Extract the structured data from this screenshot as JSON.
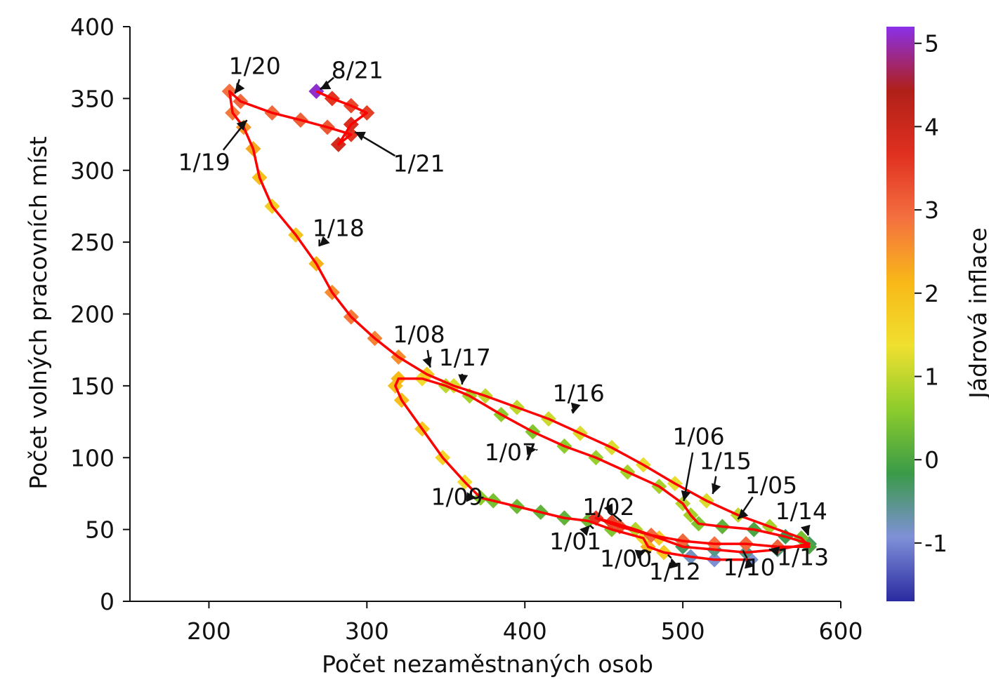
{
  "chart_data": {
    "type": "scatter",
    "variant": "connected-scatter-with-colorbar",
    "xlabel": "Počet nezaměstnaných osob",
    "ylabel": "Počet volných pracovních míst",
    "xlim": [
      150,
      600
    ],
    "ylim": [
      0,
      400
    ],
    "x_ticks": [
      200,
      300,
      400,
      500,
      600
    ],
    "y_ticks": [
      0,
      50,
      100,
      150,
      200,
      250,
      300,
      350,
      400
    ],
    "colorbar": {
      "label": "Jádrová inflace",
      "range": [
        -1.7,
        5.2
      ],
      "ticks": [
        -1,
        0,
        1,
        2,
        3,
        4,
        5
      ],
      "colors": [
        "#2a2aa0",
        "#7f90d8",
        "#3a9a48",
        "#8ccc2c",
        "#f0e030",
        "#f8b818",
        "#f47040",
        "#e03020",
        "#b02018",
        "#8a30e8"
      ]
    },
    "line_color": "#ff0000",
    "path": [
      {
        "x": 543,
        "y": 29,
        "c": -0.9
      },
      {
        "x": 520,
        "y": 29,
        "c": -0.9
      },
      {
        "x": 505,
        "y": 31,
        "c": -0.8
      },
      {
        "x": 488,
        "y": 34,
        "c": 1.8
      },
      {
        "x": 478,
        "y": 38,
        "c": 2.2
      },
      {
        "x": 475,
        "y": 44,
        "c": 1.5
      },
      {
        "x": 455,
        "y": 50,
        "c": 0.5
      },
      {
        "x": 440,
        "y": 56,
        "c": 0.3
      },
      {
        "x": 425,
        "y": 58,
        "c": 0.2
      },
      {
        "x": 410,
        "y": 62,
        "c": 0.2
      },
      {
        "x": 395,
        "y": 66,
        "c": 0.3
      },
      {
        "x": 380,
        "y": 70,
        "c": 0.4
      },
      {
        "x": 372,
        "y": 72,
        "c": 0.6
      },
      {
        "x": 362,
        "y": 83,
        "c": 1.4
      },
      {
        "x": 348,
        "y": 100,
        "c": 1.6
      },
      {
        "x": 335,
        "y": 120,
        "c": 1.8
      },
      {
        "x": 322,
        "y": 140,
        "c": 2.0
      },
      {
        "x": 318,
        "y": 150,
        "c": 2.0
      },
      {
        "x": 320,
        "y": 155,
        "c": 2.1
      },
      {
        "x": 335,
        "y": 155,
        "c": 1.4
      },
      {
        "x": 350,
        "y": 150,
        "c": 1.0
      },
      {
        "x": 365,
        "y": 143,
        "c": 0.8
      },
      {
        "x": 385,
        "y": 130,
        "c": 0.6
      },
      {
        "x": 405,
        "y": 118,
        "c": 0.5
      },
      {
        "x": 425,
        "y": 108,
        "c": 0.6
      },
      {
        "x": 445,
        "y": 100,
        "c": 0.7
      },
      {
        "x": 465,
        "y": 90,
        "c": 0.8
      },
      {
        "x": 485,
        "y": 80,
        "c": 0.8
      },
      {
        "x": 500,
        "y": 68,
        "c": 0.9
      },
      {
        "x": 505,
        "y": 60,
        "c": 0.8
      },
      {
        "x": 510,
        "y": 54,
        "c": 0.5
      },
      {
        "x": 525,
        "y": 52,
        "c": 0.2
      },
      {
        "x": 545,
        "y": 50,
        "c": 0.0
      },
      {
        "x": 565,
        "y": 45,
        "c": -0.2
      },
      {
        "x": 580,
        "y": 40,
        "c": -0.3
      },
      {
        "x": 560,
        "y": 36,
        "c": -0.4
      },
      {
        "x": 540,
        "y": 34,
        "c": -0.5
      },
      {
        "x": 520,
        "y": 36,
        "c": -0.5
      },
      {
        "x": 500,
        "y": 38,
        "c": -0.3
      },
      {
        "x": 485,
        "y": 44,
        "c": 1.8
      },
      {
        "x": 470,
        "y": 50,
        "c": 0.9
      },
      {
        "x": 455,
        "y": 55,
        "c": 3.4
      },
      {
        "x": 445,
        "y": 58,
        "c": 3.6
      },
      {
        "x": 460,
        "y": 52,
        "c": 3.3
      },
      {
        "x": 480,
        "y": 46,
        "c": 3.0
      },
      {
        "x": 500,
        "y": 42,
        "c": 3.0
      },
      {
        "x": 520,
        "y": 40,
        "c": 2.9
      },
      {
        "x": 540,
        "y": 40,
        "c": 3.0
      },
      {
        "x": 560,
        "y": 38,
        "c": 3.1
      },
      {
        "x": 580,
        "y": 38,
        "c": 0.0
      },
      {
        "x": 575,
        "y": 44,
        "c": 0.4
      },
      {
        "x": 555,
        "y": 52,
        "c": 0.8
      },
      {
        "x": 535,
        "y": 60,
        "c": 1.0
      },
      {
        "x": 515,
        "y": 70,
        "c": 1.2
      },
      {
        "x": 495,
        "y": 82,
        "c": 1.3
      },
      {
        "x": 475,
        "y": 95,
        "c": 1.3
      },
      {
        "x": 455,
        "y": 107,
        "c": 1.2
      },
      {
        "x": 435,
        "y": 117,
        "c": 1.2
      },
      {
        "x": 415,
        "y": 127,
        "c": 1.1
      },
      {
        "x": 395,
        "y": 135,
        "c": 1.0
      },
      {
        "x": 375,
        "y": 143,
        "c": 1.0
      },
      {
        "x": 355,
        "y": 150,
        "c": 1.2
      },
      {
        "x": 338,
        "y": 158,
        "c": 1.8
      },
      {
        "x": 320,
        "y": 170,
        "c": 2.6
      },
      {
        "x": 305,
        "y": 183,
        "c": 2.7
      },
      {
        "x": 290,
        "y": 198,
        "c": 2.8
      },
      {
        "x": 278,
        "y": 215,
        "c": 2.6
      },
      {
        "x": 268,
        "y": 235,
        "c": 2.2
      },
      {
        "x": 255,
        "y": 255,
        "c": 1.9
      },
      {
        "x": 240,
        "y": 275,
        "c": 1.7
      },
      {
        "x": 232,
        "y": 295,
        "c": 2.0
      },
      {
        "x": 228,
        "y": 315,
        "c": 2.3
      },
      {
        "x": 222,
        "y": 330,
        "c": 2.5
      },
      {
        "x": 215,
        "y": 340,
        "c": 2.8
      },
      {
        "x": 213,
        "y": 355,
        "c": 2.9
      },
      {
        "x": 220,
        "y": 348,
        "c": 3.0
      },
      {
        "x": 240,
        "y": 340,
        "c": 3.0
      },
      {
        "x": 258,
        "y": 335,
        "c": 3.1
      },
      {
        "x": 275,
        "y": 330,
        "c": 3.2
      },
      {
        "x": 290,
        "y": 325,
        "c": 3.6
      },
      {
        "x": 282,
        "y": 318,
        "c": 3.9
      },
      {
        "x": 290,
        "y": 332,
        "c": 3.8
      },
      {
        "x": 300,
        "y": 340,
        "c": 3.5
      },
      {
        "x": 290,
        "y": 345,
        "c": 3.4
      },
      {
        "x": 278,
        "y": 350,
        "c": 3.6
      },
      {
        "x": 268,
        "y": 355,
        "c": 5.1
      }
    ],
    "annotations": [
      {
        "label": "1/20",
        "x": 229,
        "y": 373,
        "tx": 215,
        "ty": 351
      },
      {
        "label": "8/21",
        "x": 294,
        "y": 370,
        "tx": 268,
        "ty": 355
      },
      {
        "label": "1/21",
        "x": 333,
        "y": 305,
        "tx": 290,
        "ty": 328
      },
      {
        "label": "1/19",
        "x": 197,
        "y": 306,
        "tx": 226,
        "ty": 337
      },
      {
        "label": "1/18",
        "x": 282,
        "y": 260,
        "tx": 268,
        "ty": 245
      },
      {
        "label": "1/08",
        "x": 333,
        "y": 186,
        "tx": 341,
        "ty": 160
      },
      {
        "label": "1/17",
        "x": 362,
        "y": 170,
        "tx": 360,
        "ty": 148
      },
      {
        "label": "1/16",
        "x": 434,
        "y": 145,
        "tx": 430,
        "ty": 128
      },
      {
        "label": "1/06",
        "x": 510,
        "y": 115,
        "tx": 500,
        "ty": 67
      },
      {
        "label": "1/15",
        "x": 527,
        "y": 98,
        "tx": 518,
        "ty": 72
      },
      {
        "label": "1/05",
        "x": 556,
        "y": 81,
        "tx": 533,
        "ty": 55
      },
      {
        "label": "1/14",
        "x": 575,
        "y": 63,
        "tx": 580,
        "ty": 43
      },
      {
        "label": "1/13",
        "x": 576,
        "y": 31,
        "tx": 552,
        "ty": 37
      },
      {
        "label": "1/10",
        "x": 542,
        "y": 24,
        "tx": 540,
        "ty": 33
      },
      {
        "label": "1/12",
        "x": 495,
        "y": 21,
        "tx": 492,
        "ty": 33
      },
      {
        "label": "1/00",
        "x": 464,
        "y": 30,
        "tx": 479,
        "ty": 36
      },
      {
        "label": "1/01",
        "x": 432,
        "y": 42,
        "tx": 443,
        "ty": 55
      },
      {
        "label": "1/02",
        "x": 453,
        "y": 66,
        "tx": 457,
        "ty": 58
      },
      {
        "label": "1/07",
        "x": 391,
        "y": 104,
        "tx": 410,
        "ty": 106
      },
      {
        "label": "1/09",
        "x": 357,
        "y": 73,
        "tx": 372,
        "ty": 72
      }
    ]
  }
}
